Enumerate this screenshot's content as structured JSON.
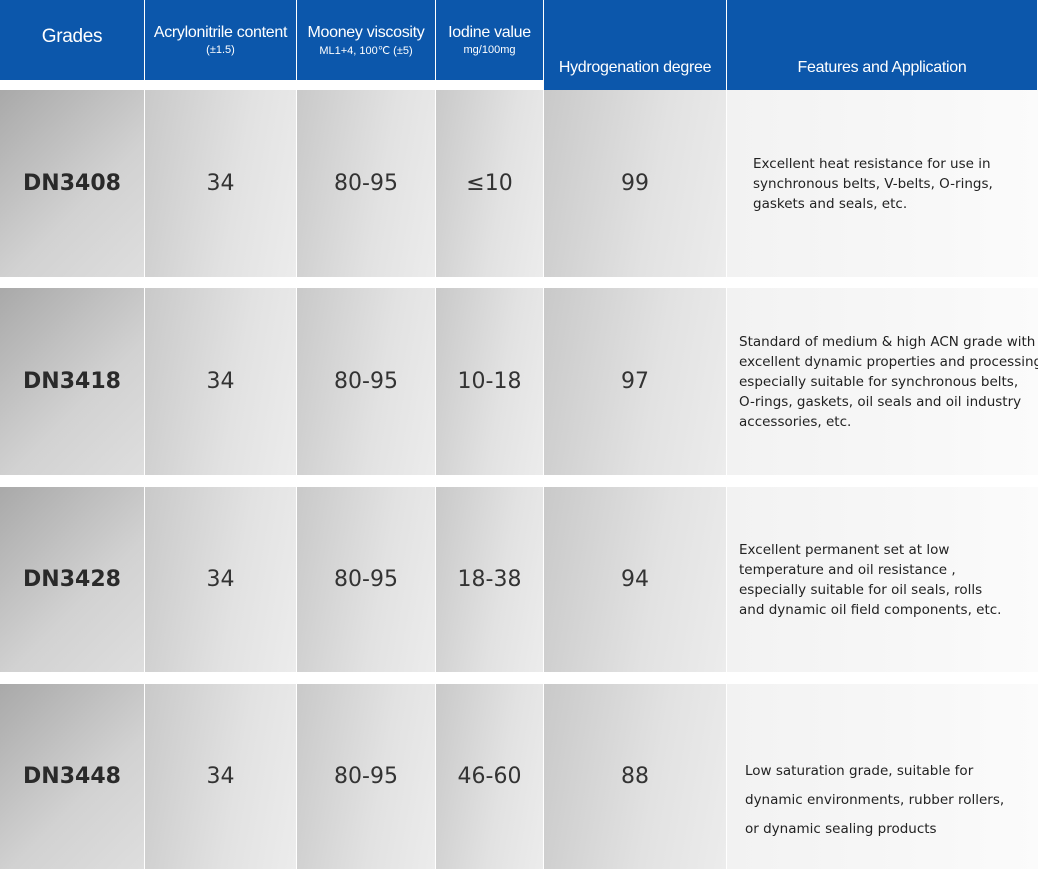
{
  "table": {
    "columns": [
      {
        "title": "Grades"
      },
      {
        "title": "Acrylonitrile content",
        "subtitle": "(±1.5)"
      },
      {
        "title": "Mooney viscosity",
        "subtitle": "ML1+4, 100℃ (±5)"
      },
      {
        "title": "Iodine value",
        "subtitle": "mg/100mg"
      },
      {
        "title": "Hydrogenation degree"
      },
      {
        "title": "Features and Application"
      }
    ],
    "rows": [
      {
        "cells": [
          "DN3408",
          "34",
          "80-95",
          "≤10",
          "99"
        ],
        "features": [
          "Excellent heat resistance for use in",
          "synchronous belts, V-belts, O-rings,",
          "gaskets and seals, etc."
        ]
      },
      {
        "cells": [
          "DN3418",
          "34",
          "80-95",
          "10-18",
          "97"
        ],
        "features": [
          "Standard of medium & high ACN grade with",
          "excellent dynamic properties and processing,",
          "especially  suitable  for synchronous belts,",
          "O-rings, gaskets, oil seals and oil industry",
          "accessories, etc."
        ]
      },
      {
        "cells": [
          "DN3428",
          "34",
          "80-95",
          "18-38",
          "94"
        ],
        "features": [
          "Excellent permanent set at low",
          "temperature and oil resistance ,",
          "especially suitable for oil seals, rolls",
          "and dynamic oil field components, etc."
        ]
      },
      {
        "cells": [
          "DN3448",
          "34",
          "80-95",
          "46-60",
          "88"
        ],
        "features": [
          "Low saturation grade, suitable for",
          "dynamic environments, rubber rollers,",
          "or dynamic sealing products"
        ]
      }
    ]
  }
}
